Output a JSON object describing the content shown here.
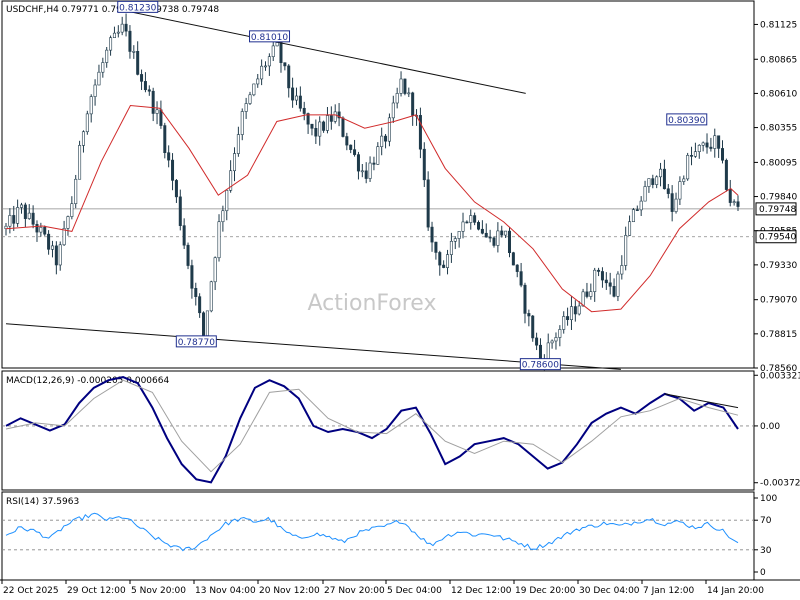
{
  "chart_data": [
    {
      "type": "candlestick",
      "title": "USDCHF,H4  0.79771 0.79796 0.79738 0.79748",
      "watermark": "ActionForex",
      "y_ticks": [
        "0.81125",
        "0.80865",
        "0.80610",
        "0.80355",
        "0.80095",
        "0.79840",
        "0.79585",
        "0.79330",
        "0.79070",
        "0.78815",
        "0.78560"
      ],
      "y_tick_values": [
        0.81125,
        0.80865,
        0.8061,
        0.80355,
        0.80095,
        0.7984,
        0.79585,
        0.7933,
        0.7907,
        0.78815,
        0.7856
      ],
      "ylim": [
        0.7856,
        0.813
      ],
      "price_tags": [
        {
          "text": "0.79748",
          "value": 0.79748,
          "style": "current"
        },
        {
          "text": "0.79540",
          "value": 0.7954,
          "style": "level"
        }
      ],
      "annotations": [
        {
          "text": "0.81230",
          "value": 0.8123,
          "date_index": 0.18
        },
        {
          "text": "0.81010",
          "value": 0.8101,
          "date_index": 0.36
        },
        {
          "text": "0.78770",
          "value": 0.7877,
          "date_index": 0.26
        },
        {
          "text": "0.78600",
          "value": 0.786,
          "date_index": 0.73
        },
        {
          "text": "0.80390",
          "value": 0.8039,
          "date_index": 0.93
        }
      ],
      "trendlines": [
        {
          "from": [
            0.16,
            0.8123
          ],
          "to": [
            0.71,
            0.8061
          ]
        },
        {
          "from": [
            0.0,
            0.7889
          ],
          "to": [
            0.84,
            0.7855
          ]
        }
      ],
      "horizontal_lines": [
        {
          "value": 0.79748,
          "style": "solid"
        },
        {
          "value": 0.7954,
          "style": "dashed"
        }
      ],
      "moving_average": "red",
      "key_points": [
        [
          0.0,
          0.796
        ],
        [
          0.02,
          0.7975
        ],
        [
          0.05,
          0.7955
        ],
        [
          0.07,
          0.7935
        ],
        [
          0.09,
          0.798
        ],
        [
          0.11,
          0.805
        ],
        [
          0.14,
          0.8095
        ],
        [
          0.16,
          0.811
        ],
        [
          0.18,
          0.808
        ],
        [
          0.21,
          0.804
        ],
        [
          0.23,
          0.799
        ],
        [
          0.25,
          0.793
        ],
        [
          0.27,
          0.788
        ],
        [
          0.29,
          0.796
        ],
        [
          0.32,
          0.804
        ],
        [
          0.35,
          0.808
        ],
        [
          0.37,
          0.8095
        ],
        [
          0.39,
          0.806
        ],
        [
          0.42,
          0.803
        ],
        [
          0.45,
          0.8045
        ],
        [
          0.47,
          0.802
        ],
        [
          0.49,
          0.8
        ],
        [
          0.52,
          0.803
        ],
        [
          0.54,
          0.807
        ],
        [
          0.56,
          0.8045
        ],
        [
          0.58,
          0.795
        ],
        [
          0.6,
          0.793
        ],
        [
          0.62,
          0.7965
        ],
        [
          0.64,
          0.797
        ],
        [
          0.66,
          0.795
        ],
        [
          0.68,
          0.796
        ],
        [
          0.7,
          0.792
        ],
        [
          0.72,
          0.788
        ],
        [
          0.73,
          0.7862
        ],
        [
          0.75,
          0.788
        ],
        [
          0.77,
          0.7895
        ],
        [
          0.79,
          0.791
        ],
        [
          0.81,
          0.793
        ],
        [
          0.83,
          0.791
        ],
        [
          0.85,
          0.796
        ],
        [
          0.87,
          0.7985
        ],
        [
          0.89,
          0.8005
        ],
        [
          0.91,
          0.7975
        ],
        [
          0.93,
          0.801
        ],
        [
          0.95,
          0.802
        ],
        [
          0.97,
          0.8025
        ],
        [
          0.99,
          0.798
        ],
        [
          1.0,
          0.7975
        ]
      ],
      "ma_points": [
        [
          0.0,
          0.796
        ],
        [
          0.05,
          0.7962
        ],
        [
          0.09,
          0.7958
        ],
        [
          0.13,
          0.801
        ],
        [
          0.17,
          0.8052
        ],
        [
          0.21,
          0.805
        ],
        [
          0.25,
          0.802
        ],
        [
          0.29,
          0.7985
        ],
        [
          0.33,
          0.8
        ],
        [
          0.37,
          0.804
        ],
        [
          0.41,
          0.8045
        ],
        [
          0.45,
          0.8045
        ],
        [
          0.49,
          0.8035
        ],
        [
          0.53,
          0.804
        ],
        [
          0.56,
          0.8045
        ],
        [
          0.6,
          0.8005
        ],
        [
          0.64,
          0.798
        ],
        [
          0.68,
          0.7965
        ],
        [
          0.72,
          0.7945
        ],
        [
          0.76,
          0.7915
        ],
        [
          0.8,
          0.7898
        ],
        [
          0.84,
          0.79
        ],
        [
          0.88,
          0.7925
        ],
        [
          0.92,
          0.796
        ],
        [
          0.96,
          0.798
        ],
        [
          0.99,
          0.799
        ],
        [
          1.0,
          0.7985
        ]
      ]
    },
    {
      "type": "line",
      "title": "MACD(12,26,9) -0.000205 0.000664",
      "y_ticks": [
        "0.003321",
        "0.00",
        "-0.003723"
      ],
      "y_tick_values": [
        0.003321,
        0.0,
        -0.003723
      ],
      "ylim": [
        -0.0042,
        0.0036
      ],
      "trendlines": [
        {
          "from": [
            0.9,
            0.0021
          ],
          "to": [
            1.0,
            0.0012
          ]
        }
      ],
      "series": [
        {
          "role": "macd",
          "color": "#000080",
          "points": [
            [
              0.0,
              0.0
            ],
            [
              0.02,
              0.0005
            ],
            [
              0.04,
              0.0001
            ],
            [
              0.06,
              -0.0003
            ],
            [
              0.08,
              0.0001
            ],
            [
              0.1,
              0.0015
            ],
            [
              0.12,
              0.0025
            ],
            [
              0.14,
              0.003
            ],
            [
              0.16,
              0.0032
            ],
            [
              0.18,
              0.0028
            ],
            [
              0.2,
              0.0012
            ],
            [
              0.22,
              -0.0008
            ],
            [
              0.24,
              -0.0025
            ],
            [
              0.26,
              -0.0035
            ],
            [
              0.28,
              -0.0037
            ],
            [
              0.3,
              -0.002
            ],
            [
              0.32,
              0.0005
            ],
            [
              0.34,
              0.0025
            ],
            [
              0.36,
              0.003
            ],
            [
              0.38,
              0.0026
            ],
            [
              0.4,
              0.0018
            ],
            [
              0.42,
              0.0
            ],
            [
              0.44,
              -0.0004
            ],
            [
              0.46,
              -0.0002
            ],
            [
              0.48,
              -0.0004
            ],
            [
              0.5,
              -0.0008
            ],
            [
              0.52,
              -0.0002
            ],
            [
              0.54,
              0.001
            ],
            [
              0.56,
              0.0012
            ],
            [
              0.58,
              -0.0005
            ],
            [
              0.6,
              -0.0025
            ],
            [
              0.62,
              -0.002
            ],
            [
              0.64,
              -0.0012
            ],
            [
              0.66,
              -0.001
            ],
            [
              0.68,
              -0.0008
            ],
            [
              0.7,
              -0.0012
            ],
            [
              0.72,
              -0.002
            ],
            [
              0.74,
              -0.0028
            ],
            [
              0.76,
              -0.0024
            ],
            [
              0.78,
              -0.0012
            ],
            [
              0.8,
              0.0002
            ],
            [
              0.82,
              0.0008
            ],
            [
              0.84,
              0.0012
            ],
            [
              0.86,
              0.0008
            ],
            [
              0.88,
              0.0015
            ],
            [
              0.9,
              0.0021
            ],
            [
              0.92,
              0.0018
            ],
            [
              0.94,
              0.001
            ],
            [
              0.96,
              0.0015
            ],
            [
              0.98,
              0.0012
            ],
            [
              1.0,
              -0.0002
            ]
          ]
        },
        {
          "role": "signal",
          "color": "#a0a0a0",
          "points": [
            [
              0.0,
              -0.0002
            ],
            [
              0.04,
              0.0002
            ],
            [
              0.08,
              0.0
            ],
            [
              0.12,
              0.0018
            ],
            [
              0.16,
              0.003
            ],
            [
              0.2,
              0.0022
            ],
            [
              0.24,
              -0.001
            ],
            [
              0.28,
              -0.003
            ],
            [
              0.32,
              -0.0012
            ],
            [
              0.36,
              0.0022
            ],
            [
              0.4,
              0.0024
            ],
            [
              0.44,
              0.0005
            ],
            [
              0.48,
              -0.0004
            ],
            [
              0.52,
              -0.0005
            ],
            [
              0.56,
              0.0008
            ],
            [
              0.6,
              -0.001
            ],
            [
              0.64,
              -0.0018
            ],
            [
              0.68,
              -0.001
            ],
            [
              0.72,
              -0.0012
            ],
            [
              0.76,
              -0.0024
            ],
            [
              0.8,
              -0.001
            ],
            [
              0.84,
              0.0006
            ],
            [
              0.88,
              0.001
            ],
            [
              0.92,
              0.0018
            ],
            [
              0.96,
              0.0012
            ],
            [
              1.0,
              0.0007
            ]
          ]
        }
      ]
    },
    {
      "type": "line",
      "title": "RSI(14) 37.5963",
      "y_ticks": [
        "100",
        "70",
        "30",
        "0"
      ],
      "y_tick_values": [
        100,
        70,
        30,
        0
      ],
      "ylim": [
        0,
        100
      ],
      "levels": [
        70,
        30
      ],
      "series": [
        {
          "role": "rsi",
          "color": "#1e90ff",
          "points": [
            [
              0.0,
              50
            ],
            [
              0.02,
              60
            ],
            [
              0.04,
              55
            ],
            [
              0.06,
              45
            ],
            [
              0.08,
              62
            ],
            [
              0.1,
              72
            ],
            [
              0.12,
              78
            ],
            [
              0.14,
              70
            ],
            [
              0.16,
              75
            ],
            [
              0.18,
              62
            ],
            [
              0.2,
              48
            ],
            [
              0.22,
              38
            ],
            [
              0.24,
              30
            ],
            [
              0.26,
              34
            ],
            [
              0.28,
              50
            ],
            [
              0.3,
              65
            ],
            [
              0.32,
              72
            ],
            [
              0.34,
              68
            ],
            [
              0.36,
              72
            ],
            [
              0.38,
              55
            ],
            [
              0.4,
              45
            ],
            [
              0.42,
              52
            ],
            [
              0.44,
              48
            ],
            [
              0.46,
              40
            ],
            [
              0.48,
              52
            ],
            [
              0.5,
              58
            ],
            [
              0.52,
              62
            ],
            [
              0.54,
              70
            ],
            [
              0.56,
              52
            ],
            [
              0.58,
              36
            ],
            [
              0.6,
              48
            ],
            [
              0.62,
              55
            ],
            [
              0.64,
              50
            ],
            [
              0.66,
              52
            ],
            [
              0.68,
              45
            ],
            [
              0.7,
              40
            ],
            [
              0.72,
              32
            ],
            [
              0.74,
              38
            ],
            [
              0.76,
              48
            ],
            [
              0.78,
              58
            ],
            [
              0.8,
              62
            ],
            [
              0.82,
              66
            ],
            [
              0.84,
              62
            ],
            [
              0.86,
              68
            ],
            [
              0.88,
              72
            ],
            [
              0.9,
              65
            ],
            [
              0.92,
              68
            ],
            [
              0.94,
              60
            ],
            [
              0.96,
              65
            ],
            [
              0.98,
              55
            ],
            [
              1.0,
              37.6
            ]
          ]
        }
      ]
    }
  ],
  "x_ticks": [
    "22 Oct 2025",
    "29 Oct 12:00",
    "5 Nov 20:00",
    "13 Nov 04:00",
    "20 Nov 12:00",
    "27 Nov 20:00",
    "5 Dec 04:00",
    "12 Dec 12:00",
    "19 Dec 20:00",
    "30 Dec 04:00",
    "7 Jan 12:00",
    "14 Jan 20:00"
  ],
  "colors": {
    "candles": "#1f3a4a",
    "ma": "#d12b2b",
    "trendline": "#111111",
    "grid_level": "#888888",
    "label_border": "#1f2f8f",
    "current_tag_bg": "#ffffff"
  }
}
